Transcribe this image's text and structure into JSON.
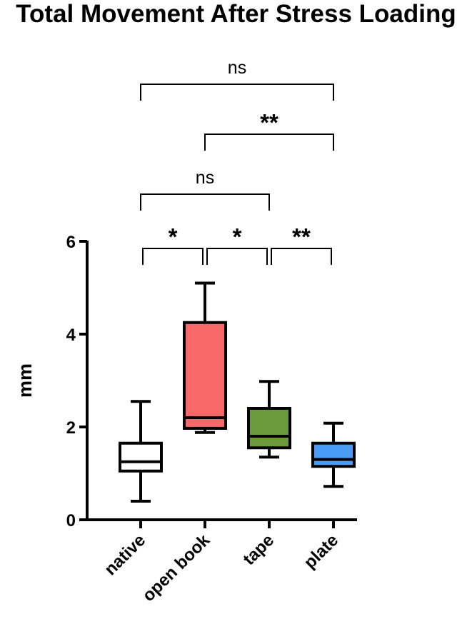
{
  "chart_data": {
    "type": "box",
    "title": "Total Movement After Stress Loading",
    "xlabel": "",
    "ylabel": "mm",
    "ylim": [
      0,
      6
    ],
    "yticks": [
      "0",
      "2",
      "4",
      "6"
    ],
    "categories": [
      "native",
      "open book",
      "tape",
      "plate"
    ],
    "boxes": [
      {
        "name": "native",
        "min": 0.4,
        "q1": 1.05,
        "median": 1.25,
        "q3": 1.65,
        "max": 2.55,
        "color": "#ffffff"
      },
      {
        "name": "open book",
        "min": 1.88,
        "q1": 1.97,
        "median": 2.2,
        "q3": 4.25,
        "max": 5.1,
        "color": "#f86868"
      },
      {
        "name": "tape",
        "min": 1.35,
        "q1": 1.55,
        "median": 1.8,
        "q3": 2.4,
        "max": 2.98,
        "color": "#6a9a3c"
      },
      {
        "name": "plate",
        "min": 0.72,
        "q1": 1.15,
        "median": 1.3,
        "q3": 1.65,
        "max": 2.08,
        "color": "#4a9cf4"
      }
    ],
    "significance": [
      {
        "from": "native",
        "to": "open book",
        "label": "*"
      },
      {
        "from": "open book",
        "to": "tape",
        "label": "*"
      },
      {
        "from": "tape",
        "to": "plate",
        "label": "**"
      },
      {
        "from": "native",
        "to": "tape",
        "label": "ns"
      },
      {
        "from": "open book",
        "to": "plate",
        "label": "**"
      },
      {
        "from": "native",
        "to": "plate",
        "label": "ns"
      }
    ]
  }
}
